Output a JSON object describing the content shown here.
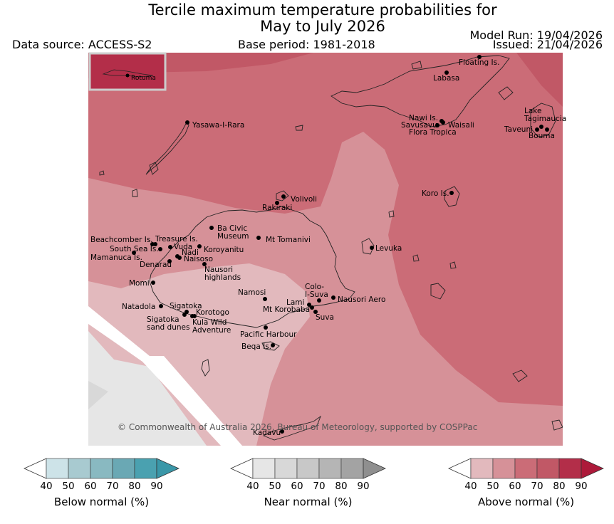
{
  "title": {
    "line1": "Tercile maximum temperature probabilities for",
    "line2": "May to July 2026"
  },
  "header": {
    "data_source": "Data source: ACCESS-S2",
    "base_period": "Base period: 1981-2018",
    "model_run": "Model Run: 19/04/2026",
    "issued": "Issued: 21/04/2026"
  },
  "copyright": "© Commonwealth of Australia 2026, Bureau of Meteorology, supported by COSPPac",
  "inset": {
    "label": "Rotuma"
  },
  "places": [
    {
      "id": "floating-is",
      "label": [
        "Floating Is."
      ]
    },
    {
      "id": "labasa",
      "label": [
        "Labasa"
      ]
    },
    {
      "id": "yasawa",
      "label": [
        "Yasawa-I-Rara"
      ]
    },
    {
      "id": "nawi",
      "label": [
        "Nawi Is."
      ]
    },
    {
      "id": "savusavu",
      "label": [
        "Savusavu"
      ]
    },
    {
      "id": "waisali",
      "label": [
        "Waisali"
      ]
    },
    {
      "id": "flora-tropica",
      "label": [
        "Flora Tropica"
      ]
    },
    {
      "id": "lake-tagimaucia",
      "label": [
        "Lake",
        "Tagimaucia"
      ]
    },
    {
      "id": "taveuni",
      "label": [
        "Taveuni"
      ]
    },
    {
      "id": "bouma",
      "label": [
        "Bouma"
      ]
    },
    {
      "id": "koro",
      "label": [
        "Koro Is."
      ]
    },
    {
      "id": "volivoli",
      "label": [
        "Volivoli"
      ]
    },
    {
      "id": "rakiraki",
      "label": [
        "Rakiraki"
      ]
    },
    {
      "id": "beachcomber",
      "label": [
        "Beachcomber Is."
      ]
    },
    {
      "id": "treasure",
      "label": [
        "Treasure Is."
      ]
    },
    {
      "id": "ba-civic",
      "label": [
        "Ba Civic",
        "Museum"
      ]
    },
    {
      "id": "mt-tomanivi",
      "label": [
        "Mt Tomanivi"
      ]
    },
    {
      "id": "south-sea",
      "label": [
        "South Sea Is."
      ]
    },
    {
      "id": "vuda",
      "label": [
        "Vuda"
      ]
    },
    {
      "id": "koroyanitu",
      "label": [
        "Koroyanitu"
      ]
    },
    {
      "id": "levuka",
      "label": [
        "Levuka"
      ]
    },
    {
      "id": "mamanuca",
      "label": [
        "Mamanuca Is."
      ]
    },
    {
      "id": "nadi",
      "label": [
        "Nadi"
      ]
    },
    {
      "id": "naisoso",
      "label": [
        "Naisoso"
      ]
    },
    {
      "id": "denarau",
      "label": [
        "Denarau"
      ]
    },
    {
      "id": "nausori-highlands",
      "label": [
        "Nausori",
        "highlands"
      ]
    },
    {
      "id": "momi",
      "label": [
        "Momi"
      ]
    },
    {
      "id": "namosi",
      "label": [
        "Namosi"
      ]
    },
    {
      "id": "colo-i-suva",
      "label": [
        "Colo-",
        "I-Suva"
      ]
    },
    {
      "id": "lami",
      "label": [
        "Lami"
      ]
    },
    {
      "id": "nausori-aero",
      "label": [
        "Nausori Aero"
      ]
    },
    {
      "id": "natadola",
      "label": [
        "Natadola"
      ]
    },
    {
      "id": "sigatoka",
      "label": [
        "Sigatoka"
      ]
    },
    {
      "id": "mt-korobaba",
      "label": [
        "Mt Korobaba"
      ]
    },
    {
      "id": "korotogo",
      "label": [
        "Korotogo"
      ]
    },
    {
      "id": "suva",
      "label": [
        "Suva"
      ]
    },
    {
      "id": "sigatoka-dunes",
      "label": [
        "Sigatoka",
        "sand dunes"
      ]
    },
    {
      "id": "kula",
      "label": [
        "Kula Wild",
        "Adventure"
      ]
    },
    {
      "id": "pacific-harbour",
      "label": [
        "Pacific Harbour"
      ]
    },
    {
      "id": "beqa",
      "label": [
        "Beqa Is."
      ]
    },
    {
      "id": "kadavu",
      "label": [
        "Kadavu"
      ]
    }
  ],
  "colorbars": [
    {
      "id": "below",
      "label": "Below normal (%)",
      "ticks": [
        "40",
        "50",
        "60",
        "70",
        "80",
        "90"
      ],
      "colors": [
        "#cde3e8",
        "#a8cad0",
        "#89b9c1",
        "#6aa8b4",
        "#4aa1b0",
        "#3a97a8"
      ]
    },
    {
      "id": "near",
      "label": "Near normal (%)",
      "ticks": [
        "40",
        "50",
        "60",
        "70",
        "80",
        "90"
      ],
      "colors": [
        "#e6e6e6",
        "#d8d8d8",
        "#c8c8c8",
        "#b5b5b5",
        "#a3a3a3",
        "#8f8f8f"
      ]
    },
    {
      "id": "above",
      "label": "Above normal (%)",
      "ticks": [
        "40",
        "50",
        "60",
        "70",
        "80",
        "90"
      ],
      "colors": [
        "#e2b9bd",
        "#d69198",
        "#cb6c77",
        "#c15866",
        "#b32e49",
        "#ad1a3a"
      ]
    }
  ]
}
